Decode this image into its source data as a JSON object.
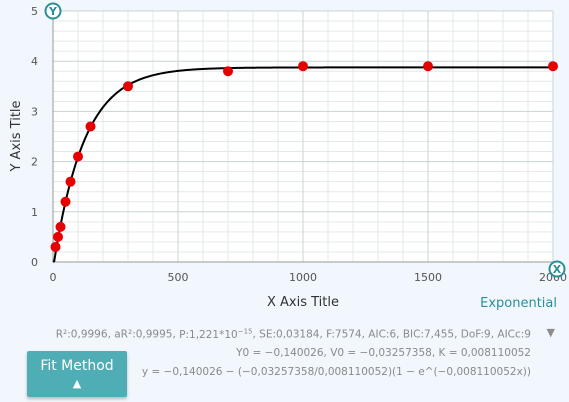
{
  "chart_data": {
    "type": "scatter",
    "xlabel": "X Axis Title",
    "ylabel": "Y Axis Title",
    "xlim": [
      0,
      2000
    ],
    "ylim": [
      0,
      5
    ],
    "x_ticks": [
      "0",
      "500",
      "1000",
      "1500",
      "2000"
    ],
    "y_ticks": [
      "0",
      "1",
      "2",
      "3",
      "4",
      "5"
    ],
    "grid": true,
    "series": [
      {
        "marker_color": "#e60000",
        "points": [
          {
            "x": 10,
            "y": 0.3
          },
          {
            "x": 20,
            "y": 0.5
          },
          {
            "x": 30,
            "y": 0.7
          },
          {
            "x": 50,
            "y": 1.2
          },
          {
            "x": 70,
            "y": 1.6
          },
          {
            "x": 100,
            "y": 2.1
          },
          {
            "x": 150,
            "y": 2.7
          },
          {
            "x": 300,
            "y": 3.5
          },
          {
            "x": 700,
            "y": 3.8
          },
          {
            "x": 1000,
            "y": 3.9
          },
          {
            "x": 1500,
            "y": 3.9
          },
          {
            "x": 2000,
            "y": 3.9
          }
        ]
      }
    ],
    "fit_curve": {
      "model": "exponential",
      "Y0": -0.140026,
      "V0": -0.03257358,
      "K": 0.008110052,
      "color": "#000000"
    }
  },
  "fit": {
    "type_label": "Exponential",
    "stats": {
      "r2": "R²:0,9996",
      "ar2": "aR²:0,9995",
      "p_prefix": "P:1,221*10",
      "p_exp": "−15",
      "se": "SE:0,03184",
      "f": "F:7574",
      "aic": "AIC:6",
      "bic": "BIC:7,455",
      "dof": "DoF:9",
      "aicc": "AICc:9"
    },
    "params": "Y0 = −0,140026, V0 = −0,03257358, K = 0,008110052",
    "equation": "y = −0,140026 − (−0,03257358/0,008110052)(1 − e^(−0,008110052x))"
  },
  "controls": {
    "fit_method_label": "Fit Method",
    "fit_method_arrow": "▲",
    "stats_toggle": "▼",
    "y_axis_badge": "Y",
    "x_axis_badge": "X"
  },
  "colors": {
    "accent": "#4fadb5",
    "badge": "#2b8f9a",
    "point": "#e60000",
    "curve": "#000000"
  }
}
